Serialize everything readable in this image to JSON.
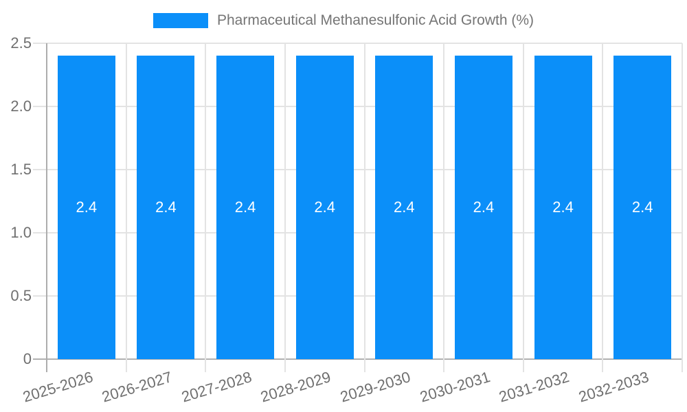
{
  "chart_data": {
    "type": "bar",
    "title": "Pharmaceutical Methanesulfonic Acid Growth (%)",
    "categories": [
      "2025-2026",
      "2026-2027",
      "2027-2028",
      "2028-2029",
      "2029-2030",
      "2030-2031",
      "2031-2032",
      "2032-2033"
    ],
    "values": [
      2.4,
      2.4,
      2.4,
      2.4,
      2.4,
      2.4,
      2.4,
      2.4
    ],
    "bar_labels": [
      "2.4",
      "2.4",
      "2.4",
      "2.4",
      "2.4",
      "2.4",
      "2.4",
      "2.4"
    ],
    "xlabel": "",
    "ylabel": "",
    "ylim": [
      0,
      2.5
    ],
    "y_ticks": [
      0,
      0.5,
      1.0,
      1.5,
      2.0,
      2.5
    ],
    "y_tick_labels": [
      "0",
      "0.5",
      "1.0",
      "1.5",
      "2.0",
      "2.5"
    ],
    "grid": true,
    "legend_position": "top",
    "colors": {
      "bar": "#0b8ff9",
      "grid": "#e3e3e3",
      "axis_line": "#adadad",
      "baseline": "#b0b0b0",
      "tick_text": "#6f6f6f",
      "legend_text": "#757575",
      "bar_label_text": "#ffffff",
      "background": "#ffffff"
    }
  }
}
